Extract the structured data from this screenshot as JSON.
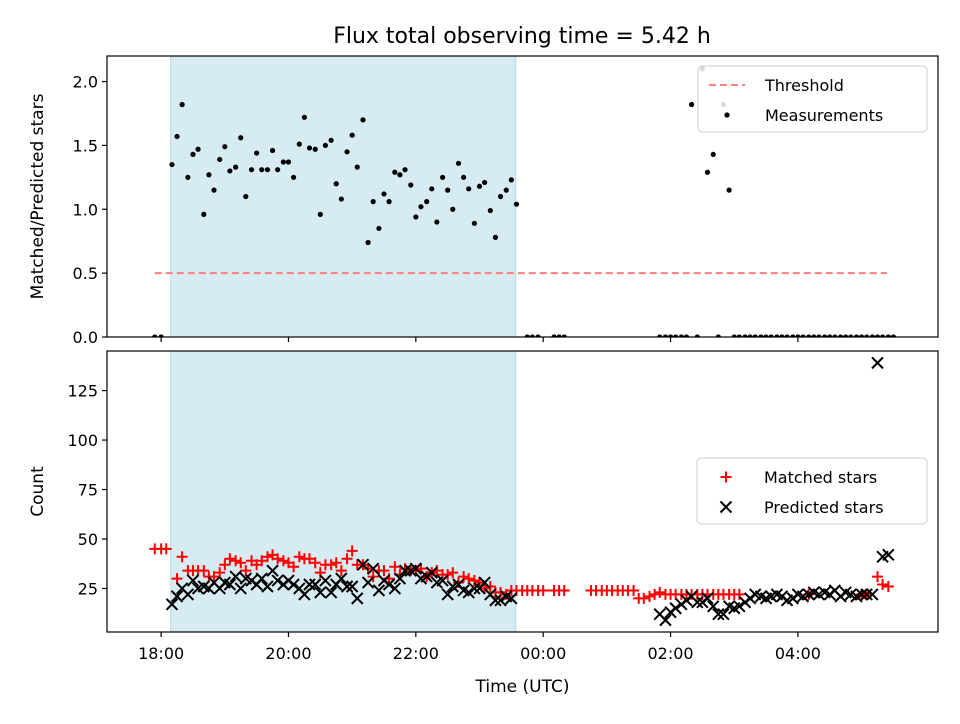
{
  "figure": {
    "title": "Flux total observing time = 5.42 h"
  },
  "chart_data": [
    {
      "type": "scatter",
      "ylabel": "Matched/Predicted stars",
      "ylim": [
        0,
        2.2
      ],
      "xlim": [
        17.15,
        30.2
      ],
      "y_ticks": [
        0.0,
        0.5,
        1.0,
        1.5,
        2.0
      ],
      "y_tick_labels": [
        "0.0",
        "0.5",
        "1.0",
        "1.5",
        "2.0"
      ],
      "x_ticks": [
        18,
        20,
        22,
        24,
        26,
        28
      ],
      "highlight_span": [
        18.15,
        23.57
      ],
      "threshold": {
        "name": "Threshold",
        "value": 0.5,
        "x_range": [
          17.9,
          29.4
        ],
        "color": "#ff7f7f"
      },
      "legend": {
        "position": "upper right",
        "entries": [
          "Threshold",
          "Measurements"
        ]
      },
      "series": [
        {
          "name": "Measurements",
          "marker": "dot",
          "color": "#000000",
          "x": [
            17.9,
            18.0,
            18.17,
            18.25,
            18.33,
            18.42,
            18.5,
            18.58,
            18.67,
            18.75,
            18.83,
            18.92,
            19.0,
            19.08,
            19.17,
            19.25,
            19.33,
            19.42,
            19.5,
            19.58,
            19.67,
            19.75,
            19.83,
            19.92,
            20.0,
            20.08,
            20.17,
            20.25,
            20.33,
            20.42,
            20.5,
            20.58,
            20.67,
            20.75,
            20.83,
            20.92,
            21.0,
            21.08,
            21.17,
            21.25,
            21.33,
            21.42,
            21.5,
            21.58,
            21.67,
            21.75,
            21.83,
            21.92,
            22.0,
            22.08,
            22.17,
            22.25,
            22.33,
            22.42,
            22.5,
            22.58,
            22.67,
            22.75,
            22.83,
            22.92,
            23.0,
            23.08,
            23.17,
            23.25,
            23.33,
            23.42,
            23.5,
            23.58,
            23.75,
            23.83,
            23.92,
            24.17,
            24.25,
            24.33,
            25.83,
            25.92,
            26.0,
            26.08,
            26.17,
            26.25,
            26.33,
            26.42,
            26.5,
            26.58,
            26.67,
            26.75,
            26.83,
            26.92,
            27.0,
            27.08,
            27.17,
            27.25,
            27.33,
            27.42,
            27.5,
            27.58,
            27.67,
            27.75,
            27.83,
            27.92,
            28.0,
            28.08,
            28.17,
            28.25,
            28.33,
            28.42,
            28.5,
            28.58,
            28.67,
            28.75,
            28.83,
            28.92,
            29.0,
            29.08,
            29.17,
            29.25,
            29.33,
            29.42,
            29.5
          ],
          "y": [
            0.0,
            0.0,
            1.35,
            1.57,
            1.82,
            1.25,
            1.43,
            1.47,
            0.96,
            1.27,
            1.15,
            1.39,
            1.49,
            1.3,
            1.33,
            1.56,
            1.1,
            1.31,
            1.44,
            1.31,
            1.31,
            1.46,
            1.31,
            1.37,
            1.37,
            1.25,
            1.51,
            1.72,
            1.48,
            1.47,
            0.96,
            1.5,
            1.54,
            1.2,
            1.08,
            1.45,
            1.58,
            1.33,
            1.7,
            0.74,
            1.06,
            0.85,
            1.12,
            1.06,
            1.29,
            1.27,
            1.31,
            1.19,
            0.94,
            1.02,
            1.06,
            1.16,
            0.9,
            1.25,
            1.15,
            1.0,
            1.36,
            1.25,
            1.16,
            0.89,
            1.18,
            1.21,
            0.99,
            0.78,
            1.1,
            1.15,
            1.23,
            1.04,
            0.0,
            0.0,
            0.0,
            0.0,
            0.0,
            0.0,
            0.0,
            0.0,
            0.0,
            0.0,
            0.0,
            0.0,
            1.82,
            0.0,
            2.1,
            1.29,
            1.43,
            0.0,
            1.82,
            1.15,
            0.0,
            0.0,
            0.0,
            0.0,
            0.0,
            0.0,
            0.0,
            0.0,
            0.0,
            0.0,
            0.0,
            0.0,
            0.0,
            0.0,
            0.0,
            0.0,
            0.0,
            0.0,
            0.0,
            0.0,
            0.0,
            0.0,
            0.0,
            0.0,
            0.0,
            0.0,
            0.0,
            0.0,
            0.0,
            0.0,
            0.0
          ]
        }
      ]
    },
    {
      "type": "scatter",
      "xlabel": "Time (UTC)",
      "ylabel": "Count",
      "ylim": [
        3,
        145
      ],
      "xlim": [
        17.15,
        30.2
      ],
      "y_ticks": [
        25,
        50,
        75,
        100,
        125
      ],
      "y_tick_labels": [
        "25",
        "50",
        "75",
        "100",
        "125"
      ],
      "x_ticks": [
        18,
        20,
        22,
        24,
        26,
        28
      ],
      "x_tick_labels": [
        "18:00",
        "20:00",
        "22:00",
        "00:00",
        "02:00",
        "04:00"
      ],
      "highlight_span": [
        18.15,
        23.57
      ],
      "legend": {
        "position": "center right",
        "entries": [
          "Matched stars",
          "Predicted stars"
        ]
      },
      "series": [
        {
          "name": "Matched stars",
          "marker": "plus",
          "color": "#ff0000",
          "x": [
            17.9,
            18.0,
            18.08,
            18.25,
            18.33,
            18.42,
            18.5,
            18.58,
            18.67,
            18.75,
            18.83,
            18.92,
            19.0,
            19.08,
            19.17,
            19.25,
            19.33,
            19.42,
            19.5,
            19.58,
            19.67,
            19.75,
            19.83,
            19.92,
            20.0,
            20.08,
            20.17,
            20.25,
            20.33,
            20.42,
            20.5,
            20.58,
            20.67,
            20.75,
            20.83,
            20.92,
            21.0,
            21.08,
            21.17,
            21.25,
            21.33,
            21.42,
            21.5,
            21.58,
            21.67,
            21.75,
            21.83,
            21.92,
            22.0,
            22.08,
            22.17,
            22.25,
            22.33,
            22.42,
            22.5,
            22.58,
            22.67,
            22.75,
            22.83,
            22.92,
            23.0,
            23.08,
            23.17,
            23.25,
            23.33,
            23.42,
            23.5,
            23.58,
            23.67,
            23.75,
            23.83,
            23.92,
            24.0,
            24.17,
            24.25,
            24.33,
            24.75,
            24.83,
            24.92,
            25.0,
            25.08,
            25.17,
            25.25,
            25.33,
            25.42,
            25.5,
            25.58,
            25.67,
            25.75,
            25.83,
            25.92,
            26.0,
            26.08,
            26.17,
            26.25,
            26.33,
            26.42,
            26.5,
            26.58,
            26.67,
            26.75,
            26.83,
            26.92,
            27.0,
            27.08,
            28.17,
            29.0,
            29.08,
            29.25,
            29.33,
            29.42
          ],
          "y": [
            45,
            45,
            45,
            30,
            41,
            34,
            34,
            34,
            34,
            31,
            31,
            33,
            37,
            40,
            39,
            38,
            34,
            39,
            37,
            39,
            41,
            42,
            40,
            39,
            38,
            36,
            41,
            40,
            40,
            38,
            33,
            37,
            37,
            38,
            34,
            40,
            44,
            37,
            37,
            35,
            31,
            34,
            34,
            30,
            36,
            32,
            35,
            34,
            34,
            35,
            31,
            33,
            34,
            32,
            32,
            33,
            28,
            31,
            30,
            29,
            28,
            25,
            26,
            23,
            23,
            22,
            24,
            24,
            24,
            24,
            24,
            24,
            24,
            24,
            24,
            24,
            24,
            24,
            24,
            24,
            24,
            24,
            24,
            24,
            24,
            20,
            20,
            21,
            22,
            23,
            22,
            22,
            22,
            22,
            22,
            22,
            22,
            22,
            22,
            22,
            22,
            22,
            22,
            22,
            22,
            22,
            22,
            22,
            31,
            27,
            26
          ]
        },
        {
          "name": "Predicted stars",
          "marker": "x",
          "color": "#000000",
          "x": [
            18.17,
            18.25,
            18.33,
            18.42,
            18.5,
            18.58,
            18.67,
            18.75,
            18.83,
            18.92,
            19.0,
            19.08,
            19.17,
            19.25,
            19.33,
            19.42,
            19.5,
            19.58,
            19.67,
            19.75,
            19.83,
            19.92,
            20.0,
            20.08,
            20.17,
            20.25,
            20.33,
            20.42,
            20.5,
            20.58,
            20.67,
            20.75,
            20.83,
            20.92,
            21.0,
            21.08,
            21.17,
            21.25,
            21.33,
            21.42,
            21.5,
            21.58,
            21.67,
            21.75,
            21.83,
            21.92,
            22.0,
            22.08,
            22.17,
            22.25,
            22.33,
            22.42,
            22.5,
            22.58,
            22.67,
            22.75,
            22.83,
            22.92,
            23.0,
            23.08,
            23.17,
            23.25,
            23.33,
            23.42,
            23.5,
            25.83,
            25.92,
            26.0,
            26.08,
            26.17,
            26.25,
            26.33,
            26.42,
            26.5,
            26.58,
            26.67,
            26.75,
            26.83,
            26.92,
            27.0,
            27.08,
            27.17,
            27.25,
            27.33,
            27.42,
            27.5,
            27.58,
            27.67,
            27.75,
            27.83,
            27.92,
            28.0,
            28.08,
            28.17,
            28.25,
            28.33,
            28.42,
            28.5,
            28.58,
            28.67,
            28.75,
            28.83,
            28.92,
            29.0,
            29.08,
            29.17,
            29.25,
            29.33,
            29.42
          ],
          "y": [
            17,
            21,
            25,
            22,
            29,
            25,
            26,
            25,
            28,
            25,
            28,
            27,
            31,
            25,
            30,
            29,
            27,
            30,
            26,
            34,
            29,
            27,
            29,
            27,
            25,
            22,
            27,
            27,
            23,
            29,
            23,
            27,
            30,
            26,
            26,
            20,
            37,
            28,
            35,
            24,
            29,
            27,
            25,
            30,
            34,
            34,
            35,
            30,
            31,
            33,
            28,
            29,
            22,
            26,
            27,
            24,
            23,
            25,
            25,
            28,
            22,
            19,
            19,
            21,
            20,
            12,
            9,
            13,
            15,
            17,
            19,
            21,
            18,
            18,
            20,
            16,
            12,
            12,
            16,
            15,
            16,
            18,
            20,
            22,
            21,
            20,
            21,
            22,
            21,
            19,
            20,
            22,
            21,
            22,
            23,
            22,
            23,
            22,
            24,
            21,
            23,
            22,
            21,
            22,
            22,
            22,
            139,
            41,
            42
          ]
        }
      ]
    }
  ]
}
